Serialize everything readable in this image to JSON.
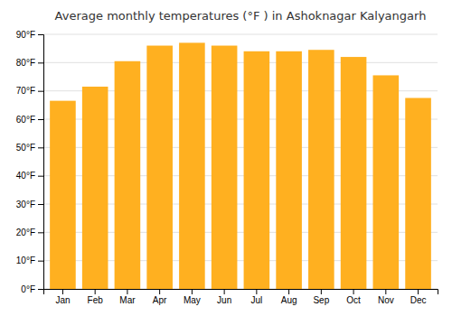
{
  "chart_data": {
    "type": "bar",
    "title": "Average monthly temperatures (°F ) in Ashoknagar Kalyangarh",
    "categories": [
      "Jan",
      "Feb",
      "Mar",
      "Apr",
      "May",
      "Jun",
      "Jul",
      "Aug",
      "Sep",
      "Oct",
      "Nov",
      "Dec"
    ],
    "values": [
      66.5,
      71.5,
      80.5,
      86,
      87,
      86,
      84,
      84,
      84.5,
      82,
      75.5,
      67.5
    ],
    "color": "#FFB020",
    "ylim": [
      0,
      90
    ],
    "yticks": [
      {
        "value": 0,
        "label": "0°F"
      },
      {
        "value": 10,
        "label": "10°F"
      },
      {
        "value": 20,
        "label": "20°F"
      },
      {
        "value": 30,
        "label": "30°F"
      },
      {
        "value": 40,
        "label": "40°F"
      },
      {
        "value": 50,
        "label": "50°F"
      },
      {
        "value": 60,
        "label": "60°F"
      },
      {
        "value": 70,
        "label": "70°F"
      },
      {
        "value": 80,
        "label": "80°F"
      },
      {
        "value": 90,
        "label": "90°F"
      }
    ],
    "grid": true
  }
}
